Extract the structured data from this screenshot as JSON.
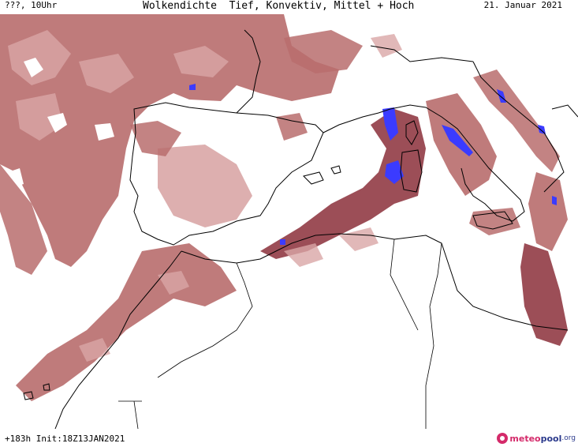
{
  "header": {
    "run_label": "???, 10Uhr",
    "title": "Wolkendichte  Tief, Konvektiv, Mittel + Hoch",
    "date": "21. Januar 2021"
  },
  "footer": {
    "forecast_info": "+183h Init:18Z13JAN2021",
    "logo_part1": "meteo",
    "logo_part2": "pool",
    "logo_part3": ".org"
  },
  "colors": {
    "cloud_light": "#d9a6a6",
    "cloud_mid": "#b86d6d",
    "cloud_dark": "#8b2f3a",
    "convective_blue": "#3b3bff",
    "coastline": "#000000",
    "background": "#ffffff"
  }
}
